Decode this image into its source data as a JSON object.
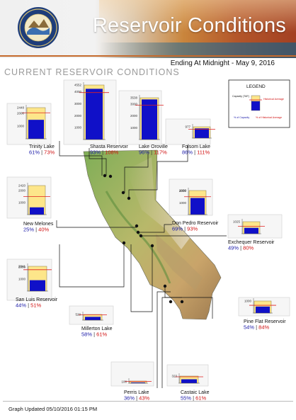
{
  "header": {
    "title": "Reservoir Conditions",
    "date_label": "Ending At Midnight - May 9, 2016"
  },
  "subtitle": "CURRENT RESERVOIR CONDITIONS",
  "footer": {
    "updated": "Graph Updated 05/10/2016 01:15 PM"
  },
  "legend": {
    "title": "LEGEND",
    "capacity_label": "Capacity (TAF)",
    "historical_label": "Historical Average",
    "pct_capacity_label": "% of Capacity",
    "pct_historical_label": "% of Historical Average"
  },
  "colors": {
    "capacity": "#fde68a",
    "storage": "#1010c8",
    "historical_line": "#e02020",
    "pct_capacity_text": "#1a1aa8",
    "pct_historical_text": "#d01010"
  },
  "chart_data": {
    "type": "bar",
    "series_description": "storage vs capacity with historical average line",
    "reservoirs": [
      {
        "name": "Trinity Lake",
        "capacity": 2448,
        "pct_capacity": 61,
        "pct_historical": 73,
        "ticks": [
          1000,
          2000,
          2448
        ]
      },
      {
        "name": "Shasta Reservoir",
        "capacity": 4552,
        "pct_capacity": 93,
        "pct_historical": 108,
        "ticks": [
          1000,
          2000,
          3000,
          4000,
          4552
        ]
      },
      {
        "name": "Lake Oroville",
        "capacity": 3538,
        "pct_capacity": 96,
        "pct_historical": 117,
        "ticks": [
          1000,
          2000,
          3000,
          3538
        ]
      },
      {
        "name": "Folsom Lake",
        "capacity": 977,
        "pct_capacity": 86,
        "pct_historical": 111,
        "ticks": [
          977
        ]
      },
      {
        "name": "New Melones",
        "capacity": 2420,
        "pct_capacity": 25,
        "pct_historical": 40,
        "ticks": [
          1000,
          2000,
          2420
        ]
      },
      {
        "name": "Don Pedro Reservoir",
        "capacity": 2030,
        "pct_capacity": 69,
        "pct_historical": 93,
        "ticks": [
          1000,
          2000,
          2030
        ]
      },
      {
        "name": "Exchequer Reservoir",
        "capacity": 1025,
        "pct_capacity": 49,
        "pct_historical": 80,
        "ticks": [
          1025
        ]
      },
      {
        "name": "San Luis Reservoir",
        "capacity": 2041,
        "pct_capacity": 44,
        "pct_historical": 51,
        "ticks": [
          1000,
          2000,
          2041
        ]
      },
      {
        "name": "Millerton Lake",
        "capacity": 520,
        "pct_capacity": 58,
        "pct_historical": 61,
        "ticks": [
          520
        ]
      },
      {
        "name": "Pine Flat Reservoir",
        "capacity": 1000,
        "pct_capacity": 54,
        "pct_historical": 84,
        "ticks": [
          1000
        ]
      },
      {
        "name": "Perris Lake",
        "capacity": 131,
        "pct_capacity": 36,
        "pct_historical": 43,
        "ticks": [
          100
        ]
      },
      {
        "name": "Castaic Lake",
        "capacity": 323,
        "pct_capacity": 55,
        "pct_historical": 61,
        "ticks": [
          323
        ]
      }
    ]
  }
}
